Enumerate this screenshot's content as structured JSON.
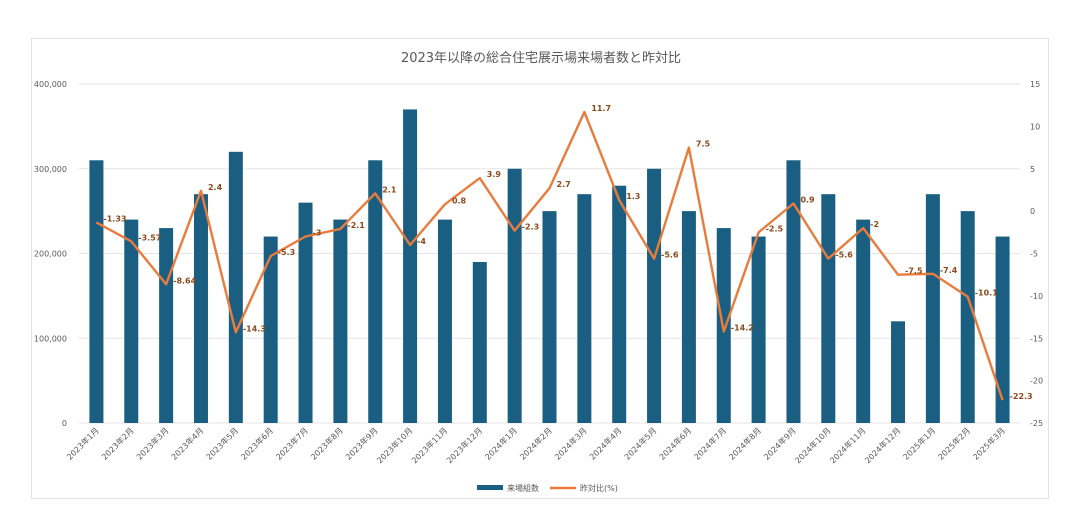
{
  "chart_data": {
    "type": "bar",
    "title": "2023年以降の総合住宅展示場来場者数と昨対比",
    "categories": [
      "2023年1月",
      "2023年2月",
      "2023年3月",
      "2023年4月",
      "2023年5月",
      "2023年6月",
      "2023年7月",
      "2023年8月",
      "2023年9月",
      "2023年10月",
      "2023年11月",
      "2023年12月",
      "2024年1月",
      "2024年2月",
      "2024年3月",
      "2024年4月",
      "2024年5月",
      "2024年6月",
      "2024年7月",
      "2024年8月",
      "2024年9月",
      "2024年10月",
      "2024年11月",
      "2024年12月",
      "2025年1月",
      "2025年2月",
      "2025年3月"
    ],
    "series": [
      {
        "name": "来場組数",
        "type": "bar",
        "axis": "left",
        "color": "#1a5f82",
        "values": [
          310000,
          240000,
          230000,
          270000,
          320000,
          220000,
          260000,
          240000,
          310000,
          370000,
          240000,
          190000,
          300000,
          250000,
          270000,
          280000,
          300000,
          250000,
          230000,
          220000,
          310000,
          270000,
          240000,
          120000,
          270000,
          250000,
          220000
        ]
      },
      {
        "name": "昨対比(%)",
        "type": "line",
        "axis": "right",
        "color": "#e97c3d",
        "values": [
          -1.33,
          -3.57,
          -8.64,
          2.4,
          -14.3,
          -5.3,
          -3,
          -2.1,
          2.1,
          -4,
          0.8,
          3.9,
          -2.3,
          2.7,
          11.7,
          1.3,
          -5.6,
          7.5,
          -14.2,
          -2.5,
          0.9,
          -5.6,
          -2,
          -7.5,
          -7.4,
          -10.1,
          -22.3
        ],
        "labels": [
          "-1.33",
          "-3.57",
          "-8.64",
          "2.4",
          "-14.3",
          "-5.3",
          "-3",
          "-2.1",
          "2.1",
          "-4",
          "0.8",
          "3.9",
          "-2.3",
          "2.7",
          "11.7",
          "1.3",
          "-5.6",
          "7.5",
          "-14.2",
          "-2.5",
          "0.9",
          "-5.6",
          "-2",
          "-7.5",
          "-7.4",
          "-10.1",
          "-22.3"
        ]
      }
    ],
    "y_left": {
      "min": 0,
      "max": 400000,
      "ticks": [
        0,
        100000,
        200000,
        300000,
        400000
      ],
      "tick_labels": [
        "0",
        "100,000",
        "200,000",
        "300,000",
        "400,000"
      ]
    },
    "y_right": {
      "min": -25,
      "max": 15,
      "ticks": [
        15,
        10,
        5,
        0,
        -5,
        -10,
        -15,
        -20,
        -25
      ],
      "tick_labels": [
        "15",
        "10",
        "5",
        "0",
        "-5",
        "-10",
        "-15",
        "-20",
        "-25"
      ]
    },
    "grid": true,
    "legend_position": "bottom"
  }
}
